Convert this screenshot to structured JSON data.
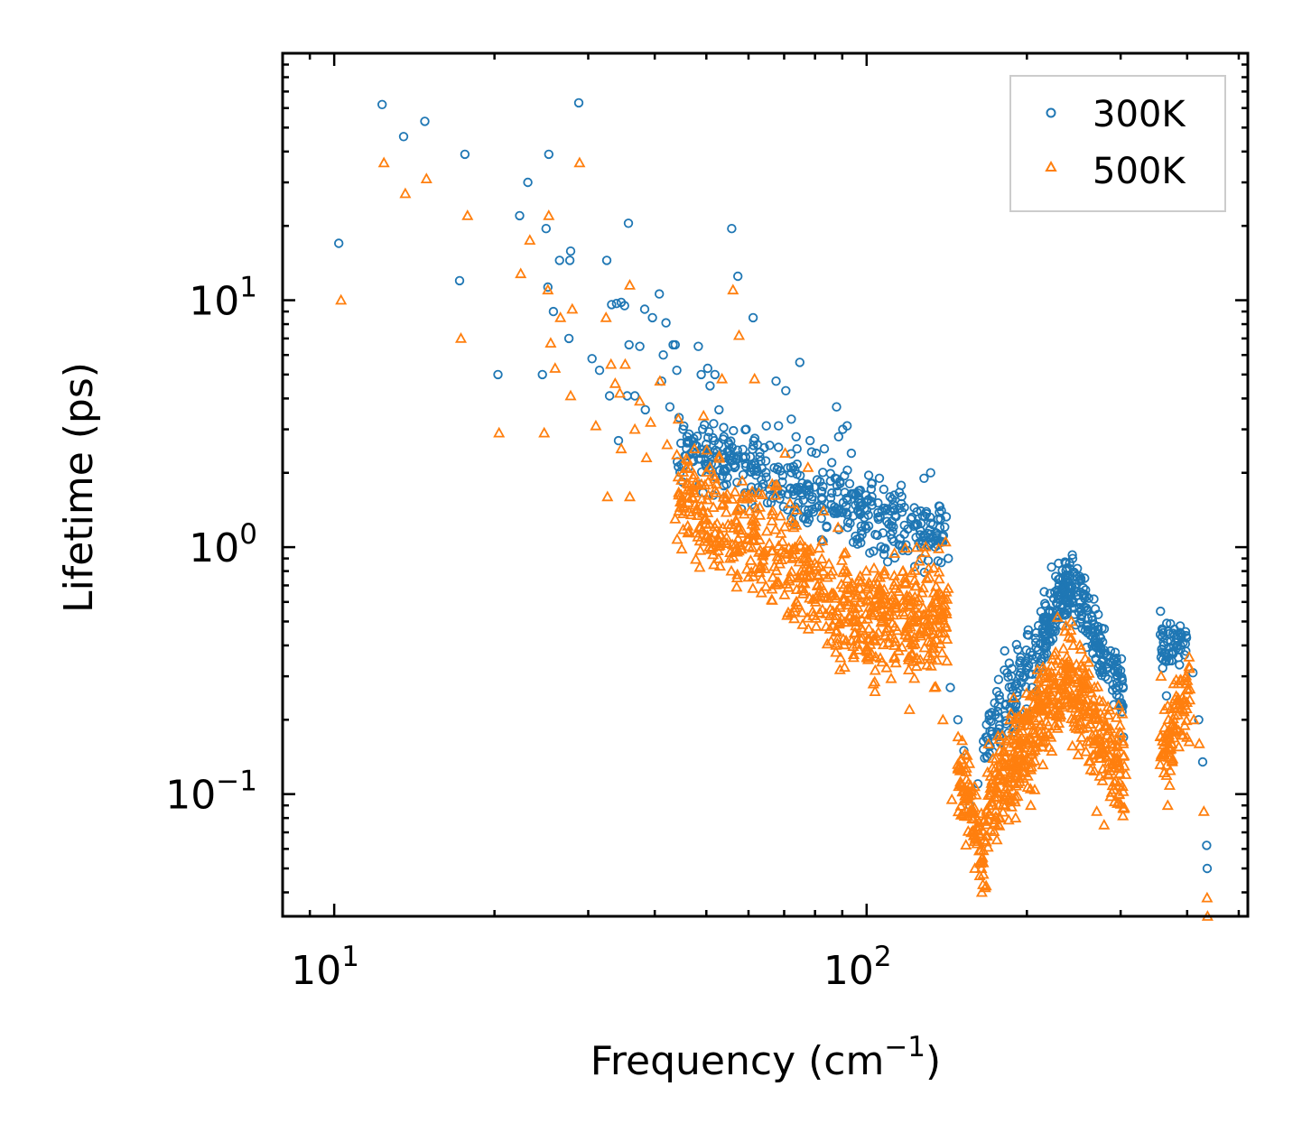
{
  "chart_data": {
    "type": "scatter",
    "xscale": "log",
    "yscale": "log",
    "xlim": [
      8,
      520
    ],
    "ylim": [
      0.032,
      100
    ],
    "xlabel": "Frequency (cm",
    "xlabel_sup": "−1",
    "xlabel_tail": ")",
    "ylabel": "Lifetime (ps)",
    "legend_position": "top-right",
    "x_ticks": [
      {
        "value": 10,
        "base": "10",
        "exp": "1"
      },
      {
        "value": 100,
        "base": "10",
        "exp": "2"
      }
    ],
    "y_ticks": [
      {
        "value": 0.1,
        "base": "10",
        "exp": "−1"
      },
      {
        "value": 1,
        "base": "10",
        "exp": "0"
      },
      {
        "value": 10,
        "base": "10",
        "exp": "1"
      }
    ],
    "series": [
      {
        "name": "300K",
        "color": "#1f77b4",
        "marker": "circle",
        "points": [
          [
            10.2,
            17
          ],
          [
            12.3,
            62
          ],
          [
            13.5,
            46
          ],
          [
            14.8,
            53
          ],
          [
            17.2,
            12
          ],
          [
            17.6,
            39
          ],
          [
            20.3,
            5
          ],
          [
            22.3,
            22
          ],
          [
            23.1,
            30
          ],
          [
            24.6,
            5
          ],
          [
            25,
            19.5
          ],
          [
            25.3,
            39
          ],
          [
            25.2,
            11.3
          ],
          [
            25.8,
            9
          ],
          [
            26.5,
            14.5
          ],
          [
            27.6,
            7
          ],
          [
            27.7,
            14.5
          ],
          [
            27.8,
            15.8
          ],
          [
            28.8,
            63
          ],
          [
            30.5,
            5.8
          ],
          [
            31.5,
            5.2
          ],
          [
            32.5,
            14.5
          ],
          [
            32.9,
            4.1
          ],
          [
            33.2,
            9.6
          ],
          [
            33.9,
            9.7
          ],
          [
            34.6,
            9.8
          ],
          [
            35.1,
            9.5
          ],
          [
            34.2,
            2.7
          ],
          [
            35.5,
            4.1
          ],
          [
            35.8,
            6.6
          ],
          [
            35.7,
            20.5
          ],
          [
            36.7,
            4.1
          ],
          [
            37.5,
            6.5
          ],
          [
            38.4,
            3.6
          ],
          [
            38.3,
            9.2
          ],
          [
            39.6,
            8.5
          ],
          [
            40.8,
            10.6
          ],
          [
            41.2,
            4.7
          ],
          [
            41.5,
            6
          ],
          [
            42,
            8.1
          ],
          [
            42.7,
            3.7
          ],
          [
            43.3,
            6.6
          ],
          [
            43.7,
            6.6
          ],
          [
            44,
            5.2
          ],
          [
            45.2,
            3
          ],
          [
            46,
            2.8
          ],
          [
            47.6,
            2.6
          ],
          [
            48.3,
            6.5
          ],
          [
            48.9,
            5
          ],
          [
            49.5,
            2.4
          ],
          [
            50.3,
            5.3
          ],
          [
            50.8,
            4.5
          ],
          [
            51.9,
            5
          ],
          [
            52.8,
            3.6
          ],
          [
            54,
            2.2
          ],
          [
            55.2,
            2.6
          ],
          [
            55.8,
            19.5
          ],
          [
            56.5,
            2.1
          ],
          [
            57.3,
            12.5
          ],
          [
            58.6,
            2.3
          ],
          [
            59.4,
            3
          ],
          [
            61.2,
            8.5
          ],
          [
            62.4,
            2.6
          ],
          [
            64.8,
            3.1
          ],
          [
            67.6,
            4.7
          ],
          [
            68.3,
            3.1
          ],
          [
            70.5,
            4.3
          ],
          [
            72.2,
            3.3
          ],
          [
            73.7,
            2.8
          ],
          [
            74,
            2.5
          ],
          [
            74.9,
            5.6
          ],
          [
            77.4,
            1.8
          ],
          [
            78.3,
            2.7
          ],
          [
            80.4,
            2.4
          ],
          [
            83.3,
            2.5
          ],
          [
            86,
            2.2
          ],
          [
            87.8,
            3.7
          ],
          [
            88.6,
            2.8
          ],
          [
            90.2,
            3
          ],
          [
            91.9,
            3.1
          ],
          [
            93.6,
            2.4
          ],
          [
            97.3,
            1.7
          ],
          [
            102.3,
            1.6
          ],
          [
            105.7,
            1.9
          ],
          [
            110.7,
            1.6
          ],
          [
            116.2,
            1.5
          ],
          [
            121.1,
            1.3
          ],
          [
            126.4,
            1.4
          ],
          [
            128.2,
            1.9
          ],
          [
            131.9,
            2
          ],
          [
            137.7,
            1.3
          ],
          [
            142.4,
            0.9
          ],
          [
            143.6,
            0.27
          ],
          [
            148.4,
            0.2
          ],
          [
            152.3,
            0.15
          ],
          [
            156.2,
            0.09
          ],
          [
            161.8,
            0.11
          ],
          [
            166.6,
            0.14
          ],
          [
            170,
            0.2
          ],
          [
            175.6,
            0.26
          ],
          [
            181.7,
            0.38
          ],
          [
            187.1,
            0.3
          ],
          [
            193.9,
            0.34
          ],
          [
            201.4,
            0.44
          ],
          [
            208.3,
            0.45
          ],
          [
            215.6,
            0.66
          ],
          [
            222.5,
            0.83
          ],
          [
            229.4,
            0.86
          ],
          [
            236.7,
            0.86
          ],
          [
            244.2,
            0.79
          ],
          [
            252.3,
            0.6
          ],
          [
            259.9,
            0.45
          ],
          [
            268.7,
            0.4
          ],
          [
            277.3,
            0.32
          ],
          [
            287.2,
            0.38
          ],
          [
            296.2,
            0.3
          ],
          [
            303.7,
            0.17
          ],
          [
            356.4,
            0.55
          ],
          [
            360.4,
            0.45
          ],
          [
            365.7,
            0.25
          ],
          [
            376.8,
            0.4
          ],
          [
            387.6,
            0.45
          ],
          [
            398.9,
            0.43
          ],
          [
            410.1,
            0.31
          ],
          [
            420.4,
            0.2
          ],
          [
            427.7,
            0.135
          ],
          [
            435.2,
            0.062
          ],
          [
            436.2,
            0.05
          ]
        ]
      },
      {
        "name": "500K",
        "color": "#ff7f0e",
        "marker": "triangle",
        "points": [
          [
            10.3,
            10
          ],
          [
            12.4,
            36
          ],
          [
            13.6,
            27
          ],
          [
            14.9,
            31
          ],
          [
            17.3,
            7
          ],
          [
            17.8,
            22
          ],
          [
            20.4,
            2.9
          ],
          [
            22.4,
            12.8
          ],
          [
            23.3,
            17.5
          ],
          [
            24.8,
            2.9
          ],
          [
            25.2,
            11
          ],
          [
            25.3,
            22
          ],
          [
            25.5,
            6.7
          ],
          [
            26,
            5.3
          ],
          [
            26.6,
            8.5
          ],
          [
            27.8,
            4.1
          ],
          [
            28,
            9.2
          ],
          [
            28.9,
            36
          ],
          [
            31,
            3.1
          ],
          [
            32.4,
            8.5
          ],
          [
            32.6,
            1.6
          ],
          [
            33.1,
            5.5
          ],
          [
            33.7,
            4.6
          ],
          [
            34.4,
            4.2
          ],
          [
            35.2,
            5.5
          ],
          [
            35.9,
            11.5
          ],
          [
            34.6,
            2.5
          ],
          [
            35.9,
            1.6
          ],
          [
            36.7,
            3
          ],
          [
            37.5,
            3.9
          ],
          [
            38.6,
            2.3
          ],
          [
            39.3,
            3.2
          ],
          [
            40.9,
            4.7
          ],
          [
            42.2,
            2.6
          ],
          [
            43.7,
            1.3
          ],
          [
            44.3,
            3.3
          ],
          [
            46.2,
            1.8
          ],
          [
            47.5,
            2.5
          ],
          [
            48.2,
            1.1
          ],
          [
            49.4,
            3.4
          ],
          [
            50.8,
            2.1
          ],
          [
            52.2,
            1.8
          ],
          [
            53.5,
            4.8
          ],
          [
            55.4,
            0.9
          ],
          [
            56.1,
            11
          ],
          [
            57.6,
            7.2
          ],
          [
            58.4,
            1.6
          ],
          [
            60.3,
            1.4
          ],
          [
            61.6,
            4.8
          ],
          [
            64,
            0.95
          ],
          [
            66.5,
            1.8
          ],
          [
            68.3,
            0.72
          ],
          [
            70.3,
            2.4
          ],
          [
            73,
            1.2
          ],
          [
            74.5,
            0.75
          ],
          [
            77.6,
            2.1
          ],
          [
            80.2,
            0.6
          ],
          [
            83,
            1.4
          ],
          [
            86.4,
            0.55
          ],
          [
            88.4,
            1.2
          ],
          [
            91.3,
            0.95
          ],
          [
            95.2,
            0.45
          ],
          [
            99.8,
            0.8
          ],
          [
            103.7,
            0.26
          ],
          [
            108,
            0.8
          ],
          [
            113.5,
            0.34
          ],
          [
            120.4,
            0.22
          ],
          [
            123,
            0.6
          ],
          [
            128.8,
            0.95
          ],
          [
            134.1,
            0.27
          ],
          [
            139.1,
            0.2
          ],
          [
            142.3,
            0.68
          ],
          [
            144.6,
            0.095
          ],
          [
            149.8,
            0.13
          ],
          [
            154,
            0.1
          ],
          [
            159.7,
            0.05
          ],
          [
            164.6,
            0.04
          ],
          [
            166.2,
            0.065
          ],
          [
            172.2,
            0.09
          ],
          [
            177.8,
            0.12
          ],
          [
            183.3,
            0.13
          ],
          [
            190.5,
            0.08
          ],
          [
            196.1,
            0.18
          ],
          [
            203.4,
            0.09
          ],
          [
            212,
            0.22
          ],
          [
            220.5,
            0.3
          ],
          [
            228.4,
            0.52
          ],
          [
            236.7,
            0.48
          ],
          [
            242.4,
            0.5
          ],
          [
            251.5,
            0.4
          ],
          [
            260.4,
            0.28
          ],
          [
            270.6,
            0.085
          ],
          [
            279.3,
            0.075
          ],
          [
            288.9,
            0.16
          ],
          [
            298.2,
            0.1
          ],
          [
            306.8,
            0.12
          ],
          [
            357.3,
            0.3
          ],
          [
            362.8,
            0.22
          ],
          [
            367.8,
            0.09
          ],
          [
            377.5,
            0.28
          ],
          [
            388.5,
            0.29
          ],
          [
            399.1,
            0.28
          ],
          [
            411.5,
            0.2
          ],
          [
            421.4,
            0.16
          ],
          [
            430,
            0.085
          ],
          [
            436.1,
            0.038
          ],
          [
            436.8,
            0.032
          ]
        ]
      }
    ],
    "dense_clouds": [
      {
        "series": "300K",
        "xmin": 44,
        "xmax": 142,
        "y_at_xmin": 2.6,
        "y_at_xmax": 1.05,
        "spread": 0.12,
        "count": 420
      },
      {
        "series": "300K",
        "xmin": 165,
        "xmax": 214,
        "y_at_xmin": 0.15,
        "y_at_xmax": 0.42,
        "spread": 0.13,
        "count": 110
      },
      {
        "series": "300K",
        "xmin": 214,
        "xmax": 242,
        "y_at_xmin": 0.42,
        "y_at_xmax": 0.72,
        "spread": 0.1,
        "count": 120
      },
      {
        "series": "300K",
        "xmin": 242,
        "xmax": 305,
        "y_at_xmin": 0.72,
        "y_at_xmax": 0.24,
        "spread": 0.12,
        "count": 140
      },
      {
        "series": "300K",
        "xmin": 356,
        "xmax": 400,
        "y_at_xmin": 0.38,
        "y_at_xmax": 0.43,
        "spread": 0.08,
        "count": 55
      },
      {
        "series": "500K",
        "xmin": 44,
        "xmax": 100,
        "y_at_xmin": 1.7,
        "y_at_xmax": 0.5,
        "spread": 0.2,
        "count": 420
      },
      {
        "series": "500K",
        "xmin": 100,
        "xmax": 142,
        "y_at_xmin": 0.5,
        "y_at_xmax": 0.55,
        "spread": 0.2,
        "count": 260
      },
      {
        "series": "500K",
        "xmin": 148,
        "xmax": 168,
        "y_at_xmin": 0.12,
        "y_at_xmax": 0.055,
        "spread": 0.15,
        "count": 100
      },
      {
        "series": "500K",
        "xmin": 168,
        "xmax": 236,
        "y_at_xmin": 0.09,
        "y_at_xmax": 0.3,
        "spread": 0.17,
        "count": 300
      },
      {
        "series": "500K",
        "xmin": 236,
        "xmax": 305,
        "y_at_xmin": 0.3,
        "y_at_xmax": 0.12,
        "spread": 0.17,
        "count": 220
      },
      {
        "series": "500K",
        "xmin": 356,
        "xmax": 405,
        "y_at_xmin": 0.14,
        "y_at_xmax": 0.26,
        "spread": 0.16,
        "count": 90
      }
    ]
  }
}
